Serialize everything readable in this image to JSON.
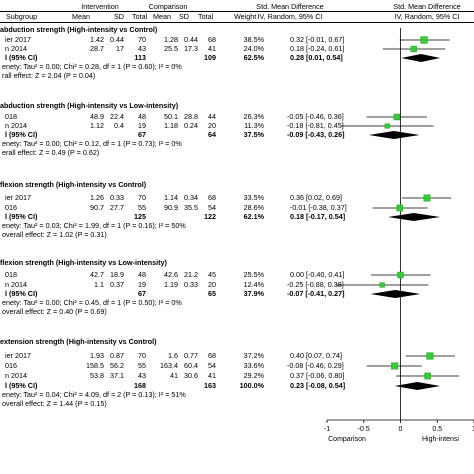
{
  "header": {
    "intervention": "Intervention",
    "comparison": "Comparison",
    "smd_title_1": "Std. Mean Difference",
    "smd_title_2": "Std. Mean Difference",
    "subgroup": "Subgroup",
    "mean1": "Mean",
    "sd1": "SD",
    "total1": "Total",
    "mean2": "Mean",
    "sd2": "SD",
    "total2": "Total",
    "weight": "Weight",
    "method_1": "IV, Random, 95% CI",
    "method_2": "IV, Random, 95% CI"
  },
  "groups": [
    {
      "title": "abduction strength (High-intensity vs Control)",
      "studies": [
        {
          "name": "ier 2017",
          "m1": "1.42",
          "sd1": "0.44",
          "n1": "70",
          "m2": "1.28",
          "sd2": "0.44",
          "n2": "68",
          "w": "38.5%",
          "ci": "0.32 [-0.01, 0.67]"
        },
        {
          "name": "n 2014",
          "m1": "28.7",
          "sd1": "17",
          "n1": "43",
          "m2": "25.5",
          "sd2": "17.3",
          "n2": "41",
          "w": "24.0%",
          "ci": "0.18 [-0.24, 0.61]"
        }
      ],
      "total": {
        "name": "l (95% CI)",
        "n1": "113",
        "n2": "109",
        "w": "62.5%",
        "ci": "0.28 [0.01, 0.54]"
      },
      "het": "enety: Tau² = 0.00; Chi² = 0.28, df = 1 (P = 0.60); I² = 0%",
      "overall": "rall effect: Z = 2.04 (P = 0.04)"
    },
    {
      "title": "abduction strength (High-intensity vs Low-intensity)",
      "studies": [
        {
          "name": "018",
          "m1": "48.9",
          "sd1": "22.4",
          "n1": "48",
          "m2": "50.1",
          "sd2": "28.8",
          "n2": "44",
          "w": "26.3%",
          "ci": "-0.05 [-0.46, 0.36]"
        },
        {
          "name": "n 2014",
          "m1": "1.12",
          "sd1": "0.4",
          "n1": "19",
          "m2": "1.18",
          "sd2": "0.24",
          "n2": "20",
          "w": "11.3%",
          "ci": "-0.18 [-0.81, 0.45]"
        }
      ],
      "total": {
        "name": "l (95% CI)",
        "n1": "67",
        "n2": "64",
        "w": "37.5%",
        "ci": "-0.09 [-0.43, 0.26]"
      },
      "het": "enety: Tau² = 0.00; Chi² = 0.12, df = 1 (P = 0.73); I² = 0%",
      "overall": "erall effect: Z = 0.49 (P = 0.62)"
    },
    {
      "title": "flexion strength (High-intensity vs Control)",
      "studies": [
        {
          "name": "ier 2017",
          "m1": "1.26",
          "sd1": "0.33",
          "n1": "70",
          "m2": "1.14",
          "sd2": "0.34",
          "n2": "68",
          "w": "33.5%",
          "ci": "0.36 [0.02, 0.69]"
        },
        {
          "name": "016",
          "m1": "90.7",
          "sd1": "27.7",
          "n1": "55",
          "m2": "90.9",
          "sd2": "35.5",
          "n2": "54",
          "w": "28.6%",
          "ci": "-0.01 [-0.38, 0.37]"
        }
      ],
      "total": {
        "name": "l (95% CI)",
        "n1": "125",
        "n2": "122",
        "w": "62.1%",
        "ci": "0.18 [-0.17, 0.54]"
      },
      "het": "enety: Tau² = 0.03; Chi² = 1.99, df = 1 (P = 0.16); I² = 50%",
      "overall": "overall effect: Z = 1.02 (P = 0.31)"
    },
    {
      "title": "flexion strength (High-intensity vs Low-intensity)",
      "studies": [
        {
          "name": "018",
          "m1": "42.7",
          "sd1": "18.9",
          "n1": "48",
          "m2": "42.6",
          "sd2": "21.2",
          "n2": "45",
          "w": "25.5%",
          "ci": "0.00 [-0.40, 0.41]"
        },
        {
          "name": "n 2014",
          "m1": "1.1",
          "sd1": "0.37",
          "n1": "19",
          "m2": "1.19",
          "sd2": "0.33",
          "n2": "20",
          "w": "12.4%",
          "ci": "-0.25 [-0.88, 0.38]"
        }
      ],
      "total": {
        "name": "l (95% CI)",
        "n1": "67",
        "n2": "65",
        "w": "37.9%",
        "ci": "-0.07 [-0.41, 0.27]"
      },
      "het": "enety: Tau² = 0.00; Chi² = 0.45, df = 1 (P = 0.50); I² = 0%",
      "overall": "overall effect: Z = 0.40 (P = 0.69)"
    },
    {
      "title": "extension strength (High-intensity vs Control)",
      "studies": [
        {
          "name": "ier 2017",
          "m1": "1.93",
          "sd1": "0.87",
          "n1": "70",
          "m2": "1.6",
          "sd2": "0.77",
          "n2": "68",
          "w": "37.2%",
          "ci": "0.40 [0.07, 0.74]"
        },
        {
          "name": "016",
          "m1": "158.5",
          "sd1": "56.2",
          "n1": "55",
          "m2": "163.4",
          "sd2": "60.4",
          "n2": "54",
          "w": "33.6%",
          "ci": "-0.08 [-0.46, 0.29]"
        },
        {
          "name": "n 2014",
          "m1": "53.8",
          "sd1": "37.1",
          "n1": "43",
          "m2": "41",
          "sd2": "30.6",
          "n2": "41",
          "w": "29.2%",
          "ci": "0.37 [-0.06, 0.80]"
        }
      ],
      "total": {
        "name": "l (95% CI)",
        "n1": "168",
        "n2": "163",
        "w": "100.0%",
        "ci": "0.23 [-0.08, 0.54]"
      },
      "het": "enety: Tau² = 0.04; Chi² = 4.09, df = 2 (P = 0.13); I² = 51%",
      "overall": "overall effect: Z = 1.44 (P = 0.15)"
    }
  ],
  "chart_data": {
    "type": "forest",
    "x_ticks": [
      -1,
      -0.5,
      0,
      0.5,
      1
    ],
    "x_tick_labels": [
      "-1",
      "-0.5",
      "0",
      "0.5",
      "1"
    ],
    "xlim": [
      -1,
      1
    ],
    "favours_left": "Comparison",
    "favours_right": "High-intensi",
    "marker_color": "#33cc33",
    "subgroups": [
      {
        "studies": [
          {
            "est": 0.32,
            "lo": -0.01,
            "hi": 0.67,
            "weight": 38.5
          },
          {
            "est": 0.18,
            "lo": -0.24,
            "hi": 0.61,
            "weight": 24.0
          }
        ],
        "pooled": {
          "est": 0.28,
          "lo": 0.01,
          "hi": 0.54
        }
      },
      {
        "studies": [
          {
            "est": -0.05,
            "lo": -0.46,
            "hi": 0.36,
            "weight": 26.3
          },
          {
            "est": -0.18,
            "lo": -0.81,
            "hi": 0.45,
            "weight": 11.3
          }
        ],
        "pooled": {
          "est": -0.09,
          "lo": -0.43,
          "hi": 0.26
        }
      },
      {
        "studies": [
          {
            "est": 0.36,
            "lo": 0.02,
            "hi": 0.69,
            "weight": 33.5
          },
          {
            "est": -0.01,
            "lo": -0.38,
            "hi": 0.37,
            "weight": 28.6
          }
        ],
        "pooled": {
          "est": 0.18,
          "lo": -0.17,
          "hi": 0.54
        }
      },
      {
        "studies": [
          {
            "est": 0.0,
            "lo": -0.4,
            "hi": 0.41,
            "weight": 25.5
          },
          {
            "est": -0.25,
            "lo": -0.88,
            "hi": 0.38,
            "weight": 12.4
          }
        ],
        "pooled": {
          "est": -0.07,
          "lo": -0.41,
          "hi": 0.27
        }
      },
      {
        "studies": [
          {
            "est": 0.4,
            "lo": 0.07,
            "hi": 0.74,
            "weight": 37.2
          },
          {
            "est": -0.08,
            "lo": -0.46,
            "hi": 0.29,
            "weight": 33.6
          },
          {
            "est": 0.37,
            "lo": -0.06,
            "hi": 0.8,
            "weight": 29.2
          }
        ],
        "pooled": {
          "est": 0.23,
          "lo": -0.08,
          "hi": 0.54
        }
      }
    ]
  }
}
